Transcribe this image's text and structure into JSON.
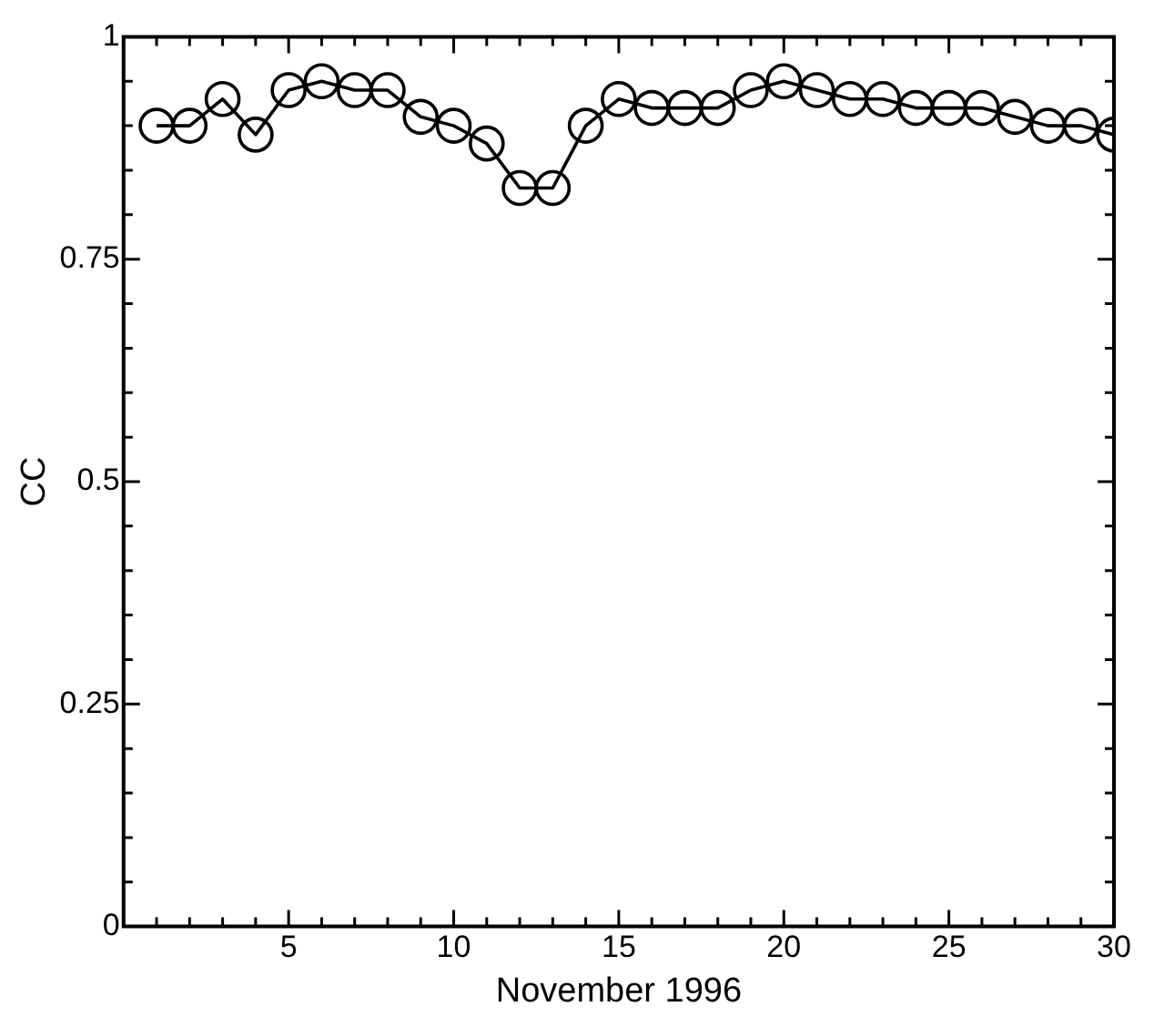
{
  "chart_data": {
    "type": "line",
    "xlabel": "November 1996",
    "ylabel": "CC",
    "x": [
      1,
      2,
      3,
      4,
      5,
      6,
      7,
      8,
      9,
      10,
      11,
      12,
      13,
      14,
      15,
      16,
      17,
      18,
      19,
      20,
      21,
      22,
      23,
      24,
      25,
      26,
      27,
      28,
      29,
      30
    ],
    "series": [
      {
        "color": "#000000",
        "values": [
          0.9,
          0.9,
          0.93,
          0.89,
          0.94,
          0.95,
          0.94,
          0.94,
          0.91,
          0.9,
          0.88,
          0.83,
          0.83,
          0.9,
          0.93,
          0.92,
          0.92,
          0.92,
          0.94,
          0.95,
          0.94,
          0.93,
          0.93,
          0.92,
          0.92,
          0.92,
          0.91,
          0.9,
          0.9,
          0.89
        ]
      }
    ],
    "xlim": [
      0,
      30
    ],
    "ylim": [
      0,
      1
    ],
    "xticks": [
      {
        "value": 0,
        "label": null
      },
      {
        "value": 1,
        "label": null
      },
      {
        "value": 2,
        "label": null
      },
      {
        "value": 3,
        "label": null
      },
      {
        "value": 4,
        "label": null
      },
      5,
      {
        "value": 6,
        "label": null
      },
      {
        "value": 7,
        "label": null
      },
      {
        "value": 8,
        "label": null
      },
      {
        "value": 9,
        "label": null
      },
      10,
      {
        "value": 11,
        "label": null
      },
      {
        "value": 12,
        "label": null
      },
      {
        "value": 13,
        "label": null
      },
      {
        "value": 14,
        "label": null
      },
      15,
      {
        "value": 16,
        "label": null
      },
      {
        "value": 17,
        "label": null
      },
      {
        "value": 18,
        "label": null
      },
      {
        "value": 19,
        "label": null
      },
      20,
      {
        "value": 21,
        "label": null
      },
      {
        "value": 22,
        "label": null
      },
      {
        "value": 23,
        "label": null
      },
      {
        "value": 24,
        "label": null
      },
      25,
      {
        "value": 26,
        "label": null
      },
      {
        "value": 27,
        "label": null
      },
      {
        "value": 28,
        "label": null
      },
      {
        "value": 29,
        "label": null
      },
      30
    ],
    "yticks": [
      0,
      {
        "value": 0.05,
        "label": null
      },
      {
        "value": 0.1,
        "label": null
      },
      {
        "value": 0.15,
        "label": null
      },
      {
        "value": 0.2,
        "label": null
      },
      0.25,
      {
        "value": 0.3,
        "label": null
      },
      {
        "value": 0.35,
        "label": null
      },
      {
        "value": 0.4,
        "label": null
      },
      {
        "value": 0.45,
        "label": null
      },
      0.5,
      {
        "value": 0.55,
        "label": null
      },
      {
        "value": 0.6,
        "label": null
      },
      {
        "value": 0.65,
        "label": null
      },
      {
        "value": 0.7,
        "label": null
      },
      0.75,
      {
        "value": 0.8,
        "label": null
      },
      {
        "value": 0.85,
        "label": null
      },
      {
        "value": 0.9,
        "label": null
      },
      {
        "value": 0.95,
        "label": null
      },
      1
    ],
    "marker": "circle",
    "line_style": "solid",
    "grid": false,
    "legend": false
  }
}
